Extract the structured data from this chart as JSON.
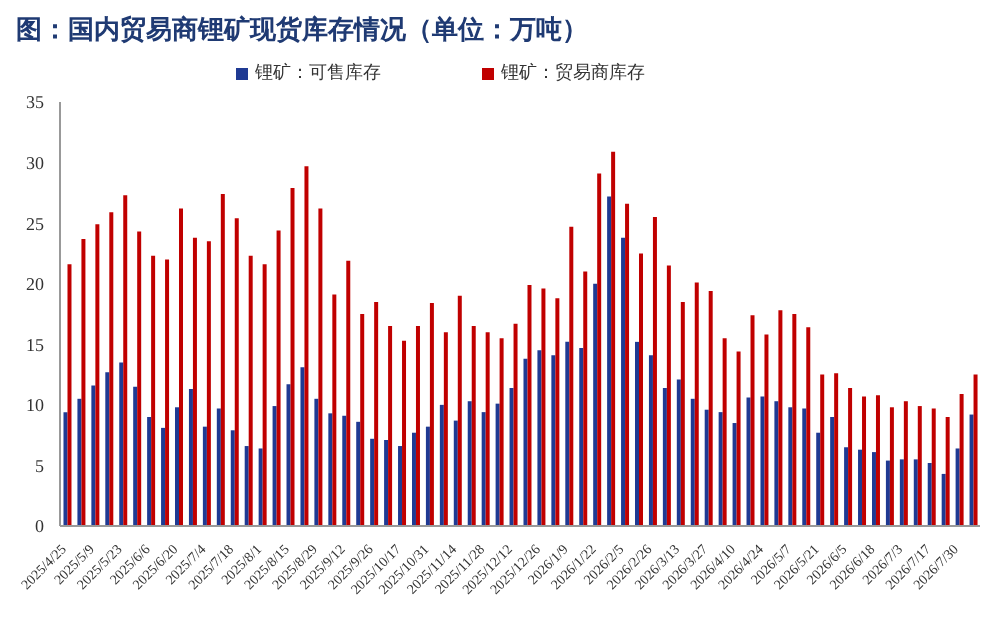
{
  "chart_data": {
    "type": "bar",
    "title": "图：国内贸易商锂矿现货库存情况（单位：万吨）",
    "categories": [
      "2025/4/25",
      null,
      "2025/5/9",
      null,
      "2025/5/23",
      null,
      "2025/6/6",
      null,
      "2025/6/20",
      null,
      "2025/7/4",
      null,
      "2025/7/18",
      null,
      "2025/8/1",
      null,
      "2025/8/15",
      null,
      "2025/8/29",
      null,
      "2025/9/12",
      null,
      "2025/9/26",
      null,
      "2025/10/17",
      null,
      "2025/10/31",
      null,
      "2025/11/14",
      null,
      "2025/11/28",
      null,
      "2025/12/12",
      null,
      "2025/12/26",
      null,
      "2026/1/9",
      null,
      "2026/1/22",
      null,
      "2026/2/5",
      null,
      "2026/2/26",
      null,
      "2026/3/13",
      null,
      "2026/3/27",
      null,
      "2026/4/10",
      null,
      "2026/4/24",
      null,
      "2026/5/7",
      null,
      "2026/5/21",
      null,
      "2026/6/5",
      null,
      "2026/6/18",
      null,
      "2026/7/3",
      null,
      "2026/7/17",
      null,
      "2026/7/30",
      null
    ],
    "series": [
      {
        "name": "锂矿：可售库存",
        "color": "#1f3a93",
        "values": [
          9.4,
          10.5,
          11.6,
          12.7,
          13.5,
          11.5,
          9.0,
          8.1,
          9.8,
          11.3,
          8.2,
          9.7,
          7.9,
          6.6,
          6.4,
          9.9,
          11.7,
          13.1,
          10.5,
          9.3,
          9.1,
          8.6,
          7.2,
          7.1,
          6.6,
          7.7,
          8.2,
          10.0,
          8.7,
          10.3,
          9.4,
          10.1,
          11.4,
          13.8,
          14.5,
          14.1,
          15.2,
          14.7,
          20.0,
          27.2,
          23.8,
          15.2,
          14.1,
          11.4,
          12.1,
          10.5,
          9.6,
          9.4,
          8.5,
          10.6,
          10.7,
          10.3,
          9.8,
          9.7,
          7.7,
          9.0,
          6.5,
          6.3,
          6.1,
          5.4,
          5.5,
          5.5,
          5.2,
          4.3,
          6.4,
          9.2
        ]
      },
      {
        "name": "锂矿：贸易商库存",
        "color": "#c00000",
        "values": [
          21.6,
          23.7,
          24.9,
          25.9,
          27.3,
          24.3,
          22.3,
          22.0,
          26.2,
          23.8,
          23.5,
          27.4,
          25.4,
          22.3,
          21.6,
          24.4,
          27.9,
          29.7,
          26.2,
          19.1,
          21.9,
          17.5,
          18.5,
          16.5,
          15.3,
          16.5,
          18.4,
          16.0,
          19.0,
          16.5,
          16.0,
          15.5,
          16.7,
          19.9,
          19.6,
          18.8,
          24.7,
          21.0,
          29.1,
          30.9,
          26.6,
          22.5,
          25.5,
          21.5,
          18.5,
          20.1,
          19.4,
          15.5,
          14.4,
          17.4,
          15.8,
          17.8,
          17.5,
          16.4,
          12.5,
          12.6,
          11.4,
          10.7,
          10.8,
          9.8,
          10.3,
          9.9,
          9.7,
          9.0,
          10.9,
          12.5
        ]
      }
    ],
    "ylim": [
      0,
      35
    ],
    "yticks": [
      0,
      5,
      10,
      15,
      20,
      25,
      30,
      35
    ],
    "grid": false,
    "legend": "top"
  }
}
